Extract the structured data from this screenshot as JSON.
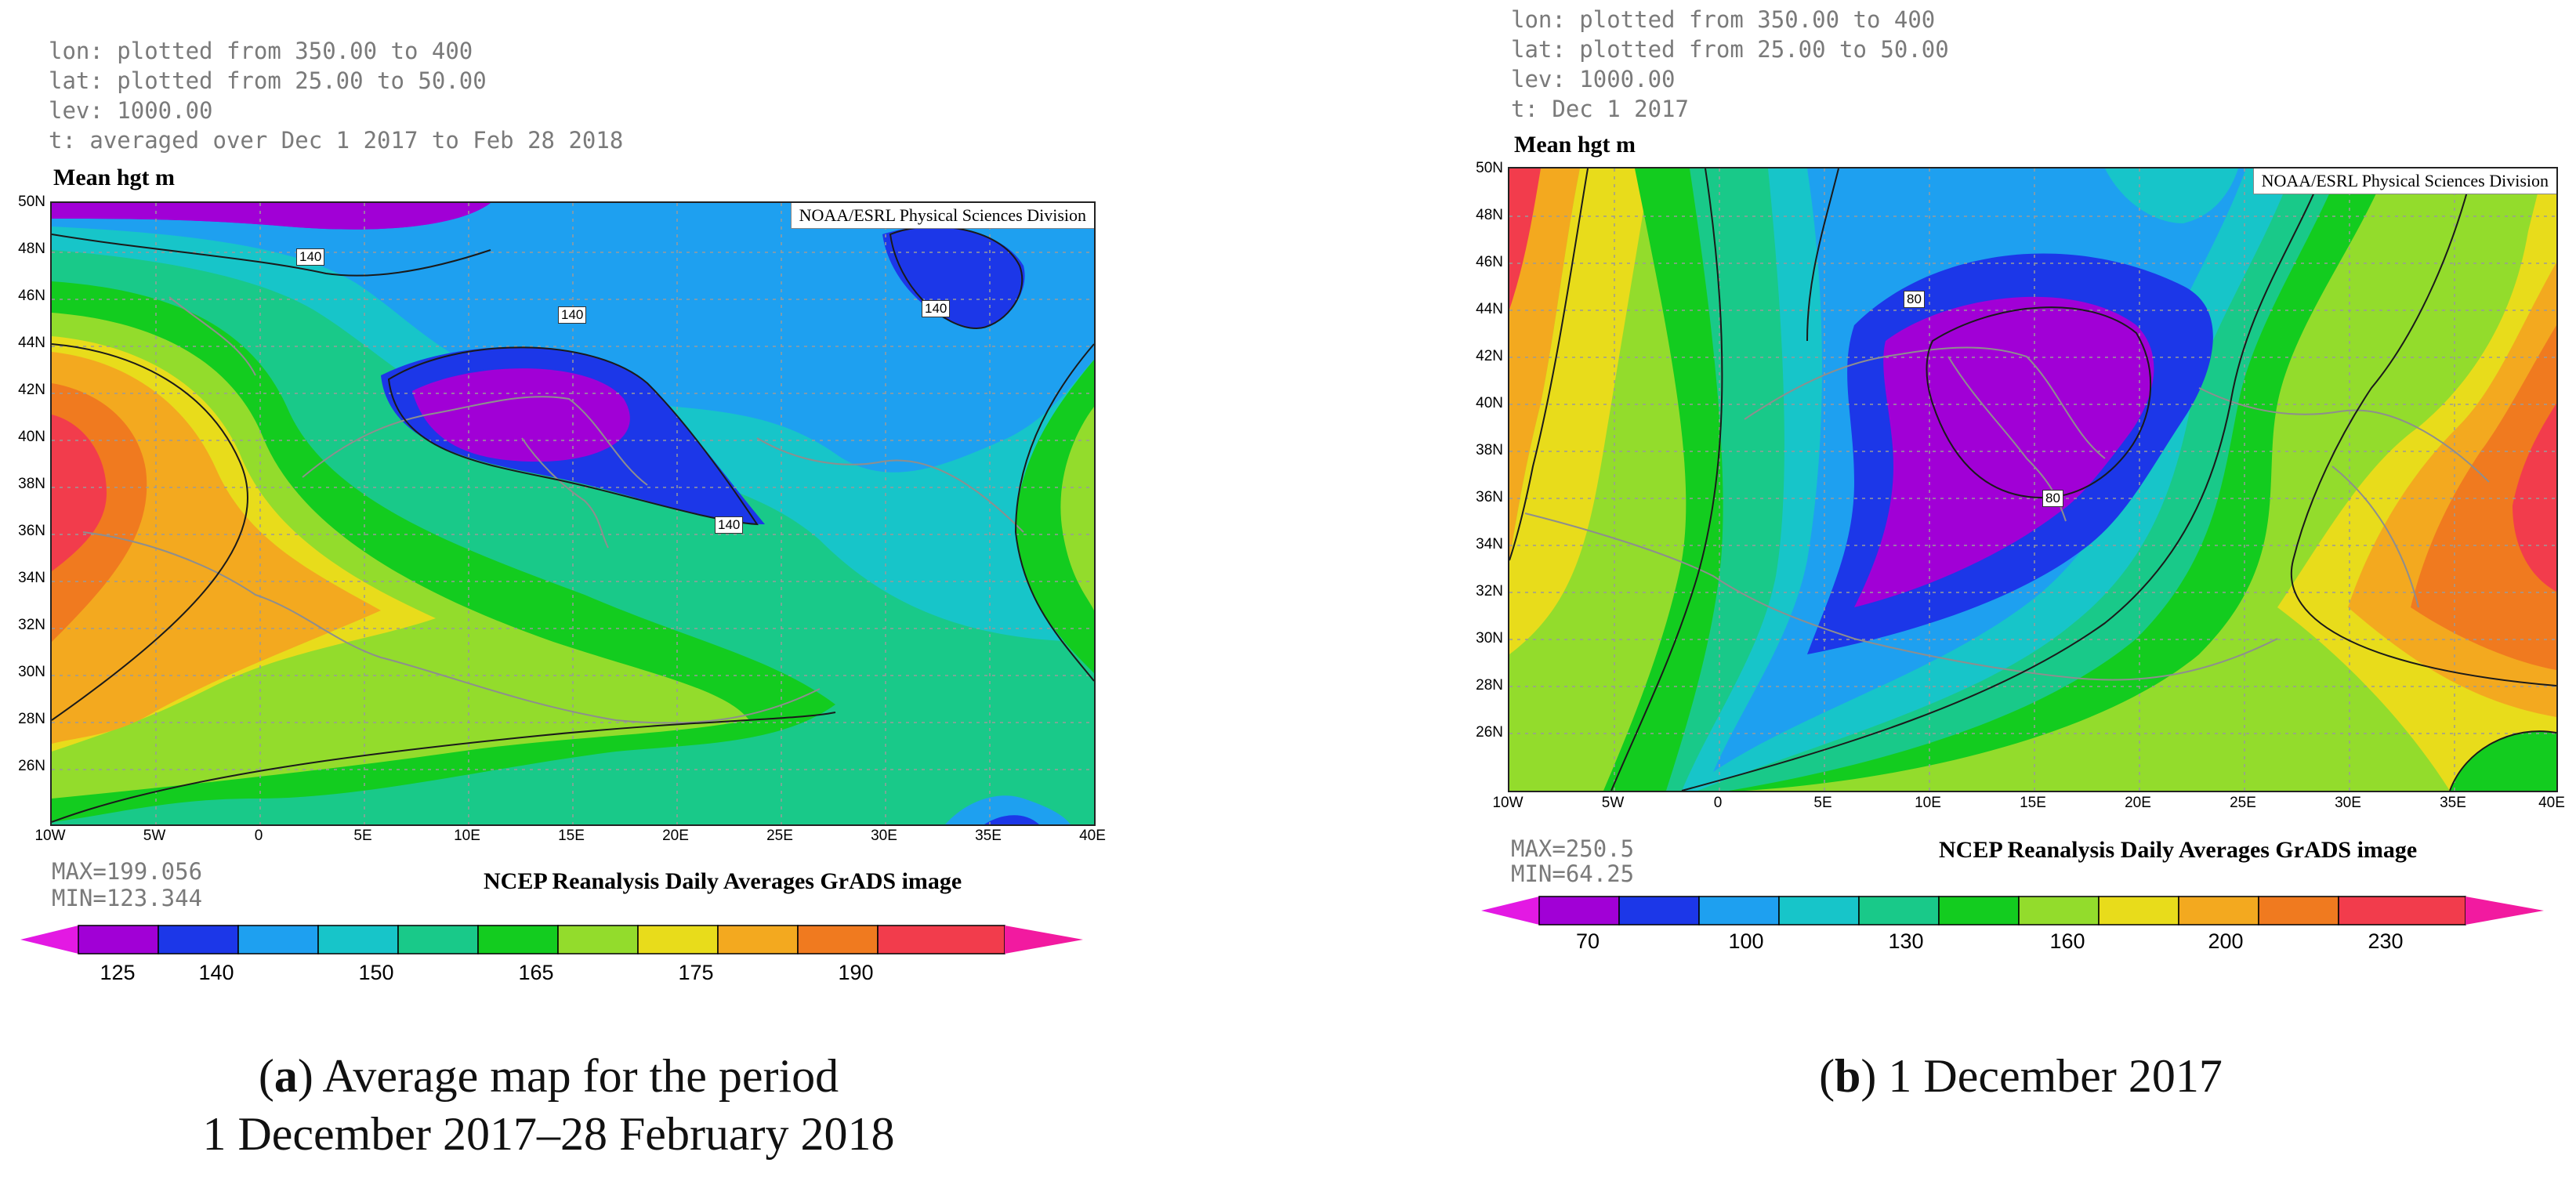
{
  "panel_a": {
    "meta": {
      "lon": "lon: plotted from 350.00 to 400",
      "lat": "lat: plotted from 25.00 to 50.00",
      "lev": "lev: 1000.00",
      "t": "t: averaged over Dec 1 2017 to Feb 28 2018"
    },
    "title": "Mean hgt m",
    "credit": "NOAA/ESRL Physical Sciences Division",
    "lat_labels": [
      "50N",
      "48N",
      "46N",
      "44N",
      "42N",
      "40N",
      "38N",
      "36N",
      "34N",
      "32N",
      "30N",
      "28N",
      "26N"
    ],
    "lon_labels": [
      "10W",
      "5W",
      "0",
      "5E",
      "10E",
      "15E",
      "20E",
      "25E",
      "30E",
      "35E",
      "40E"
    ],
    "contour_labels": [
      "140",
      "140",
      "140",
      "140"
    ],
    "max": "MAX=199.056",
    "min": "MIN=123.344",
    "caption": "NCEP Reanalysis Daily Averages GrADS image",
    "colorbar_ticks": [
      "125",
      "140",
      "150",
      "165",
      "175",
      "190"
    ],
    "colors": [
      "#a100d6",
      "#1c37e8",
      "#1ea0f0",
      "#17c5c9",
      "#19c989",
      "#13cc1f",
      "#93dc2c",
      "#e8dc1b",
      "#f3a91f",
      "#f07a1f",
      "#f23c4c"
    ],
    "figure_caption_label": "a",
    "figure_caption_line1": "Average map for the period",
    "figure_caption_line2": "1 December 2017–28 February 2018"
  },
  "panel_b": {
    "meta": {
      "lon": "lon: plotted from 350.00 to 400",
      "lat": "lat: plotted from 25.00 to 50.00",
      "lev": "lev: 1000.00",
      "t": "t: Dec 1 2017"
    },
    "title": "Mean hgt m",
    "credit": "NOAA/ESRL Physical Sciences Division",
    "lat_labels": [
      "50N",
      "48N",
      "46N",
      "44N",
      "42N",
      "40N",
      "38N",
      "36N",
      "34N",
      "32N",
      "30N",
      "28N",
      "26N"
    ],
    "lon_labels": [
      "10W",
      "5W",
      "0",
      "5E",
      "10E",
      "15E",
      "20E",
      "25E",
      "30E",
      "35E",
      "40E"
    ],
    "contour_labels": [
      "80",
      "80"
    ],
    "max": "MAX=250.5",
    "min": "MIN=64.25",
    "caption": "NCEP Reanalysis Daily Averages GrADS image",
    "colorbar_ticks": [
      "70",
      "100",
      "130",
      "160",
      "200",
      "230"
    ],
    "colors": [
      "#a100d6",
      "#1c37e8",
      "#1ea0f0",
      "#17c5c9",
      "#19c989",
      "#13cc1f",
      "#93dc2c",
      "#e8dc1b",
      "#f3a91f",
      "#f07a1f",
      "#f23c4c"
    ],
    "figure_caption_label": "b",
    "figure_caption_line1": "1 December 2017"
  }
}
